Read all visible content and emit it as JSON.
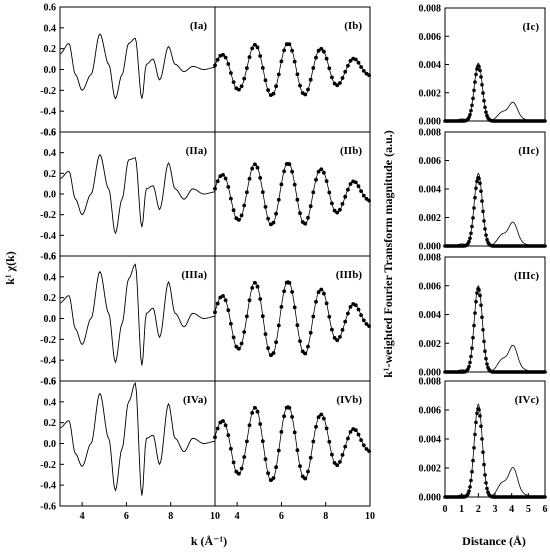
{
  "figure": {
    "left_y_label": "k¹ χ(k)",
    "left_x_label": "k (Å⁻¹)",
    "right_y_label": "k¹-weighted Fourier Transform magnitude (a.u.)",
    "right_x_label": "Distance (Å)"
  },
  "chart_data": [
    {
      "type": "line",
      "group": "k-space EXAFS (raw)",
      "panels": [
        "(Ia)",
        "(IIa)",
        "(IIIa)",
        "(IVa)"
      ],
      "xlim": [
        3,
        10
      ],
      "ylim": [
        -0.6,
        0.6
      ],
      "x_ticks": [
        "4",
        "6",
        "8",
        "10"
      ],
      "y_ticks": [
        "0.6",
        "0.4",
        "0.2",
        "0.0",
        "-0.2",
        "-0.4",
        "-0.6"
      ],
      "series": [
        {
          "panel": "(Ia)",
          "x": [
            3.0,
            3.4,
            3.7,
            4.0,
            4.4,
            4.8,
            5.2,
            5.5,
            5.8,
            6.1,
            6.4,
            6.7,
            6.9,
            7.2,
            7.5,
            7.9,
            8.2,
            8.6,
            9.0,
            9.5,
            10.0
          ],
          "y": [
            0.15,
            0.25,
            -0.05,
            -0.2,
            -0.05,
            0.34,
            0.05,
            -0.28,
            -0.05,
            0.25,
            0.3,
            -0.28,
            0.05,
            0.1,
            -0.1,
            0.22,
            0.05,
            -0.02,
            0.03,
            0.0,
            0.02
          ]
        },
        {
          "panel": "(IIa)",
          "x": [
            3.0,
            3.4,
            3.7,
            4.0,
            4.4,
            4.8,
            5.2,
            5.5,
            5.8,
            6.1,
            6.4,
            6.7,
            6.9,
            7.2,
            7.5,
            7.9,
            8.2,
            8.6,
            9.0,
            9.5,
            10.0
          ],
          "y": [
            0.15,
            0.22,
            -0.05,
            -0.2,
            0.0,
            0.38,
            0.05,
            -0.38,
            -0.05,
            0.33,
            0.35,
            -0.32,
            0.05,
            0.08,
            -0.15,
            0.3,
            0.05,
            -0.05,
            0.05,
            0.0,
            0.02
          ]
        },
        {
          "panel": "(IIIa)",
          "x": [
            3.0,
            3.4,
            3.7,
            4.0,
            4.4,
            4.8,
            5.2,
            5.5,
            5.8,
            6.1,
            6.4,
            6.7,
            6.9,
            7.2,
            7.5,
            7.9,
            8.2,
            8.6,
            9.0,
            9.5,
            10.0
          ],
          "y": [
            0.15,
            0.22,
            -0.1,
            -0.25,
            0.0,
            0.45,
            0.05,
            -0.42,
            -0.05,
            0.38,
            0.52,
            -0.45,
            0.05,
            0.1,
            -0.18,
            0.35,
            0.05,
            -0.08,
            0.05,
            0.0,
            0.02
          ]
        },
        {
          "panel": "(IVa)",
          "x": [
            3.0,
            3.4,
            3.7,
            4.0,
            4.4,
            4.8,
            5.2,
            5.5,
            5.8,
            6.1,
            6.4,
            6.7,
            6.9,
            7.2,
            7.5,
            7.9,
            8.2,
            8.6,
            9.0,
            9.5,
            10.0
          ],
          "y": [
            0.15,
            0.22,
            -0.1,
            -0.22,
            0.0,
            0.48,
            0.05,
            -0.45,
            -0.05,
            0.4,
            0.58,
            -0.5,
            0.05,
            0.08,
            -0.2,
            0.38,
            0.05,
            -0.08,
            0.05,
            0.0,
            0.02
          ]
        }
      ]
    },
    {
      "type": "line",
      "group": "k-space EXAFS (filtered, experiment line + fit points)",
      "panels": [
        "(Ib)",
        "(IIb)",
        "(IIIb)",
        "(IVb)"
      ],
      "xlim": [
        3,
        10
      ],
      "ylim": [
        -0.6,
        0.6
      ],
      "x_ticks": [
        "4",
        "6",
        "8",
        "10"
      ],
      "oscillation_period": 1.5,
      "peak_x": [
        4.8,
        6.3,
        7.8,
        9.3
      ],
      "series": [
        {
          "panel": "(Ib)",
          "envelope_x": [
            3.0,
            4.0,
            5.0,
            6.0,
            7.0,
            8.0,
            9.0,
            10.0
          ],
          "amplitude": [
            0.13,
            0.2,
            0.25,
            0.26,
            0.25,
            0.2,
            0.12,
            0.06
          ]
        },
        {
          "panel": "(IIb)",
          "envelope_x": [
            3.0,
            4.0,
            5.0,
            6.0,
            7.0,
            8.0,
            9.0,
            10.0
          ],
          "amplitude": [
            0.17,
            0.26,
            0.3,
            0.31,
            0.3,
            0.24,
            0.14,
            0.07
          ]
        },
        {
          "panel": "(IIIb)",
          "envelope_x": [
            3.0,
            4.0,
            5.0,
            6.0,
            7.0,
            8.0,
            9.0,
            10.0
          ],
          "amplitude": [
            0.2,
            0.3,
            0.36,
            0.37,
            0.35,
            0.28,
            0.16,
            0.08
          ]
        },
        {
          "panel": "(IVb)",
          "envelope_x": [
            3.0,
            4.0,
            5.0,
            6.0,
            7.0,
            8.0,
            9.0,
            10.0
          ],
          "amplitude": [
            0.2,
            0.3,
            0.36,
            0.37,
            0.35,
            0.28,
            0.16,
            0.08
          ]
        }
      ]
    },
    {
      "type": "line",
      "group": "Fourier transform magnitude",
      "panels": [
        "(Ic)",
        "(IIc)",
        "(IIIc)",
        "(IVc)"
      ],
      "xlim": [
        0,
        6
      ],
      "ylim": [
        0,
        0.008
      ],
      "x_ticks": [
        "0",
        "1",
        "2",
        "3",
        "4",
        "5",
        "6"
      ],
      "y_ticks": [
        "0.008",
        "0.006",
        "0.004",
        "0.002",
        "0.000"
      ],
      "peak_position": 2.0,
      "series": [
        {
          "panel": "(Ic)",
          "fit_peak": 0.0039,
          "experiment_peak": 0.0041,
          "second_shell_peak": 0.0015
        },
        {
          "panel": "(IIc)",
          "fit_peak": 0.0048,
          "experiment_peak": 0.0051,
          "second_shell_peak": 0.0019
        },
        {
          "panel": "(IIIc)",
          "fit_peak": 0.0058,
          "experiment_peak": 0.006,
          "second_shell_peak": 0.0021
        },
        {
          "panel": "(IVc)",
          "fit_peak": 0.0061,
          "experiment_peak": 0.0064,
          "second_shell_peak": 0.0023
        }
      ]
    }
  ]
}
